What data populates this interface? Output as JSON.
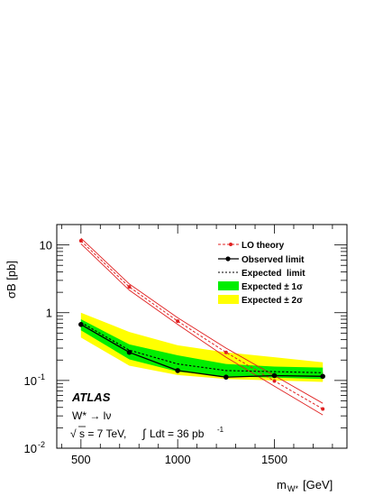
{
  "chart_data": {
    "type": "line",
    "ylabel": "σB [pb]",
    "xlabel_main": "m",
    "xlabel_sub": "W*",
    "xlabel_unit": "[GeV]",
    "xlim": [
      375,
      1875
    ],
    "ylim": [
      0.01,
      20
    ],
    "y_scale": "log",
    "grid": false,
    "legend_position": "top-right",
    "x_ticks": [
      500,
      1000,
      1500
    ],
    "x_tick_labels": [
      "500",
      "1000",
      "1500"
    ],
    "y_tick_labels": [
      {
        "value": 10,
        "base": "10",
        "exp": ""
      },
      {
        "value": 1,
        "base": "1",
        "exp": ""
      },
      {
        "value": 0.1,
        "base": "10",
        "exp": "-1"
      },
      {
        "value": 0.01,
        "base": "10",
        "exp": "-2"
      }
    ],
    "x": [
      500,
      750,
      1000,
      1250,
      1500,
      1750
    ],
    "series": [
      {
        "name": "LO theory",
        "values": [
          11.5,
          2.4,
          0.75,
          0.26,
          0.098,
          0.038
        ],
        "band_upper": [
          12.6,
          2.65,
          0.84,
          0.3,
          0.118,
          0.046
        ],
        "band_lower": [
          10.4,
          2.15,
          0.67,
          0.22,
          0.082,
          0.031
        ],
        "color": "#e02020",
        "style": "dashed-with-markers"
      },
      {
        "name": "Observed limit",
        "values": [
          0.67,
          0.26,
          0.14,
          0.112,
          0.118,
          0.115
        ],
        "color": "#000000",
        "style": "solid-with-markers"
      },
      {
        "name": "Expected  limit",
        "values": [
          0.72,
          0.28,
          0.175,
          0.14,
          0.135,
          0.13
        ],
        "color": "#000000",
        "style": "dotted"
      },
      {
        "name": "Expected ± 1σ",
        "upper": [
          0.8,
          0.34,
          0.235,
          0.175,
          0.16,
          0.155
        ],
        "lower": [
          0.55,
          0.205,
          0.135,
          0.115,
          0.11,
          0.105
        ],
        "color": "#00ee00",
        "style": "band"
      },
      {
        "name": "Expected ± 2σ",
        "upper": [
          1.0,
          0.52,
          0.33,
          0.26,
          0.22,
          0.185
        ],
        "lower": [
          0.43,
          0.165,
          0.12,
          0.105,
          0.1,
          0.095
        ],
        "color": "#ffff00",
        "style": "band"
      }
    ],
    "annotations": {
      "atlas": "ATLAS",
      "process": "W* → lν",
      "energy_sqrt": "√",
      "energy_text": "s = 7 TeV,",
      "lumi_integral": "∫",
      "lumi_text": "Ldt = 36 pb",
      "lumi_exp": "-1"
    }
  }
}
